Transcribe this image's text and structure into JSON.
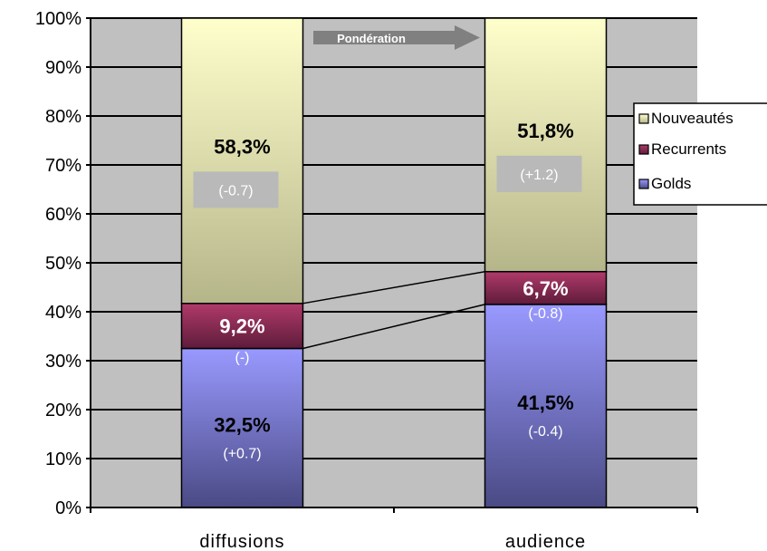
{
  "chart_data": {
    "type": "bar",
    "stacked": true,
    "normalized": true,
    "categories": [
      "diffusions",
      "audience"
    ],
    "series": [
      {
        "name": "Golds",
        "values": [
          32.5,
          41.5
        ],
        "labels": [
          "32,5%",
          "41,5%"
        ],
        "changes": [
          "(+0.7)",
          "(-0.4)"
        ],
        "color_top": "#9999ff",
        "color_bottom": "#4a4a85"
      },
      {
        "name": "Recurrents",
        "values": [
          9.2,
          6.7
        ],
        "labels": [
          "9,2%",
          "6,7%"
        ],
        "changes": [
          "(-)",
          "(-0.8)"
        ],
        "color_top": "#b03a6b",
        "color_bottom": "#5e1c3a"
      },
      {
        "name": "Nouveautés",
        "values": [
          58.3,
          51.8
        ],
        "labels": [
          "58,3%",
          "51,8%"
        ],
        "changes": [
          "(-0.7)",
          "(+1.2)"
        ],
        "color_top": "#ffffcc",
        "color_bottom": "#b5b58a"
      }
    ],
    "ylim": [
      0,
      100
    ],
    "yticks": [
      "0%",
      "10%",
      "20%",
      "30%",
      "40%",
      "50%",
      "60%",
      "70%",
      "80%",
      "90%",
      "100%"
    ],
    "arrow_label": "Pondération",
    "legend_position": "right",
    "plot_background": "#c0c0c0",
    "grid": true
  }
}
